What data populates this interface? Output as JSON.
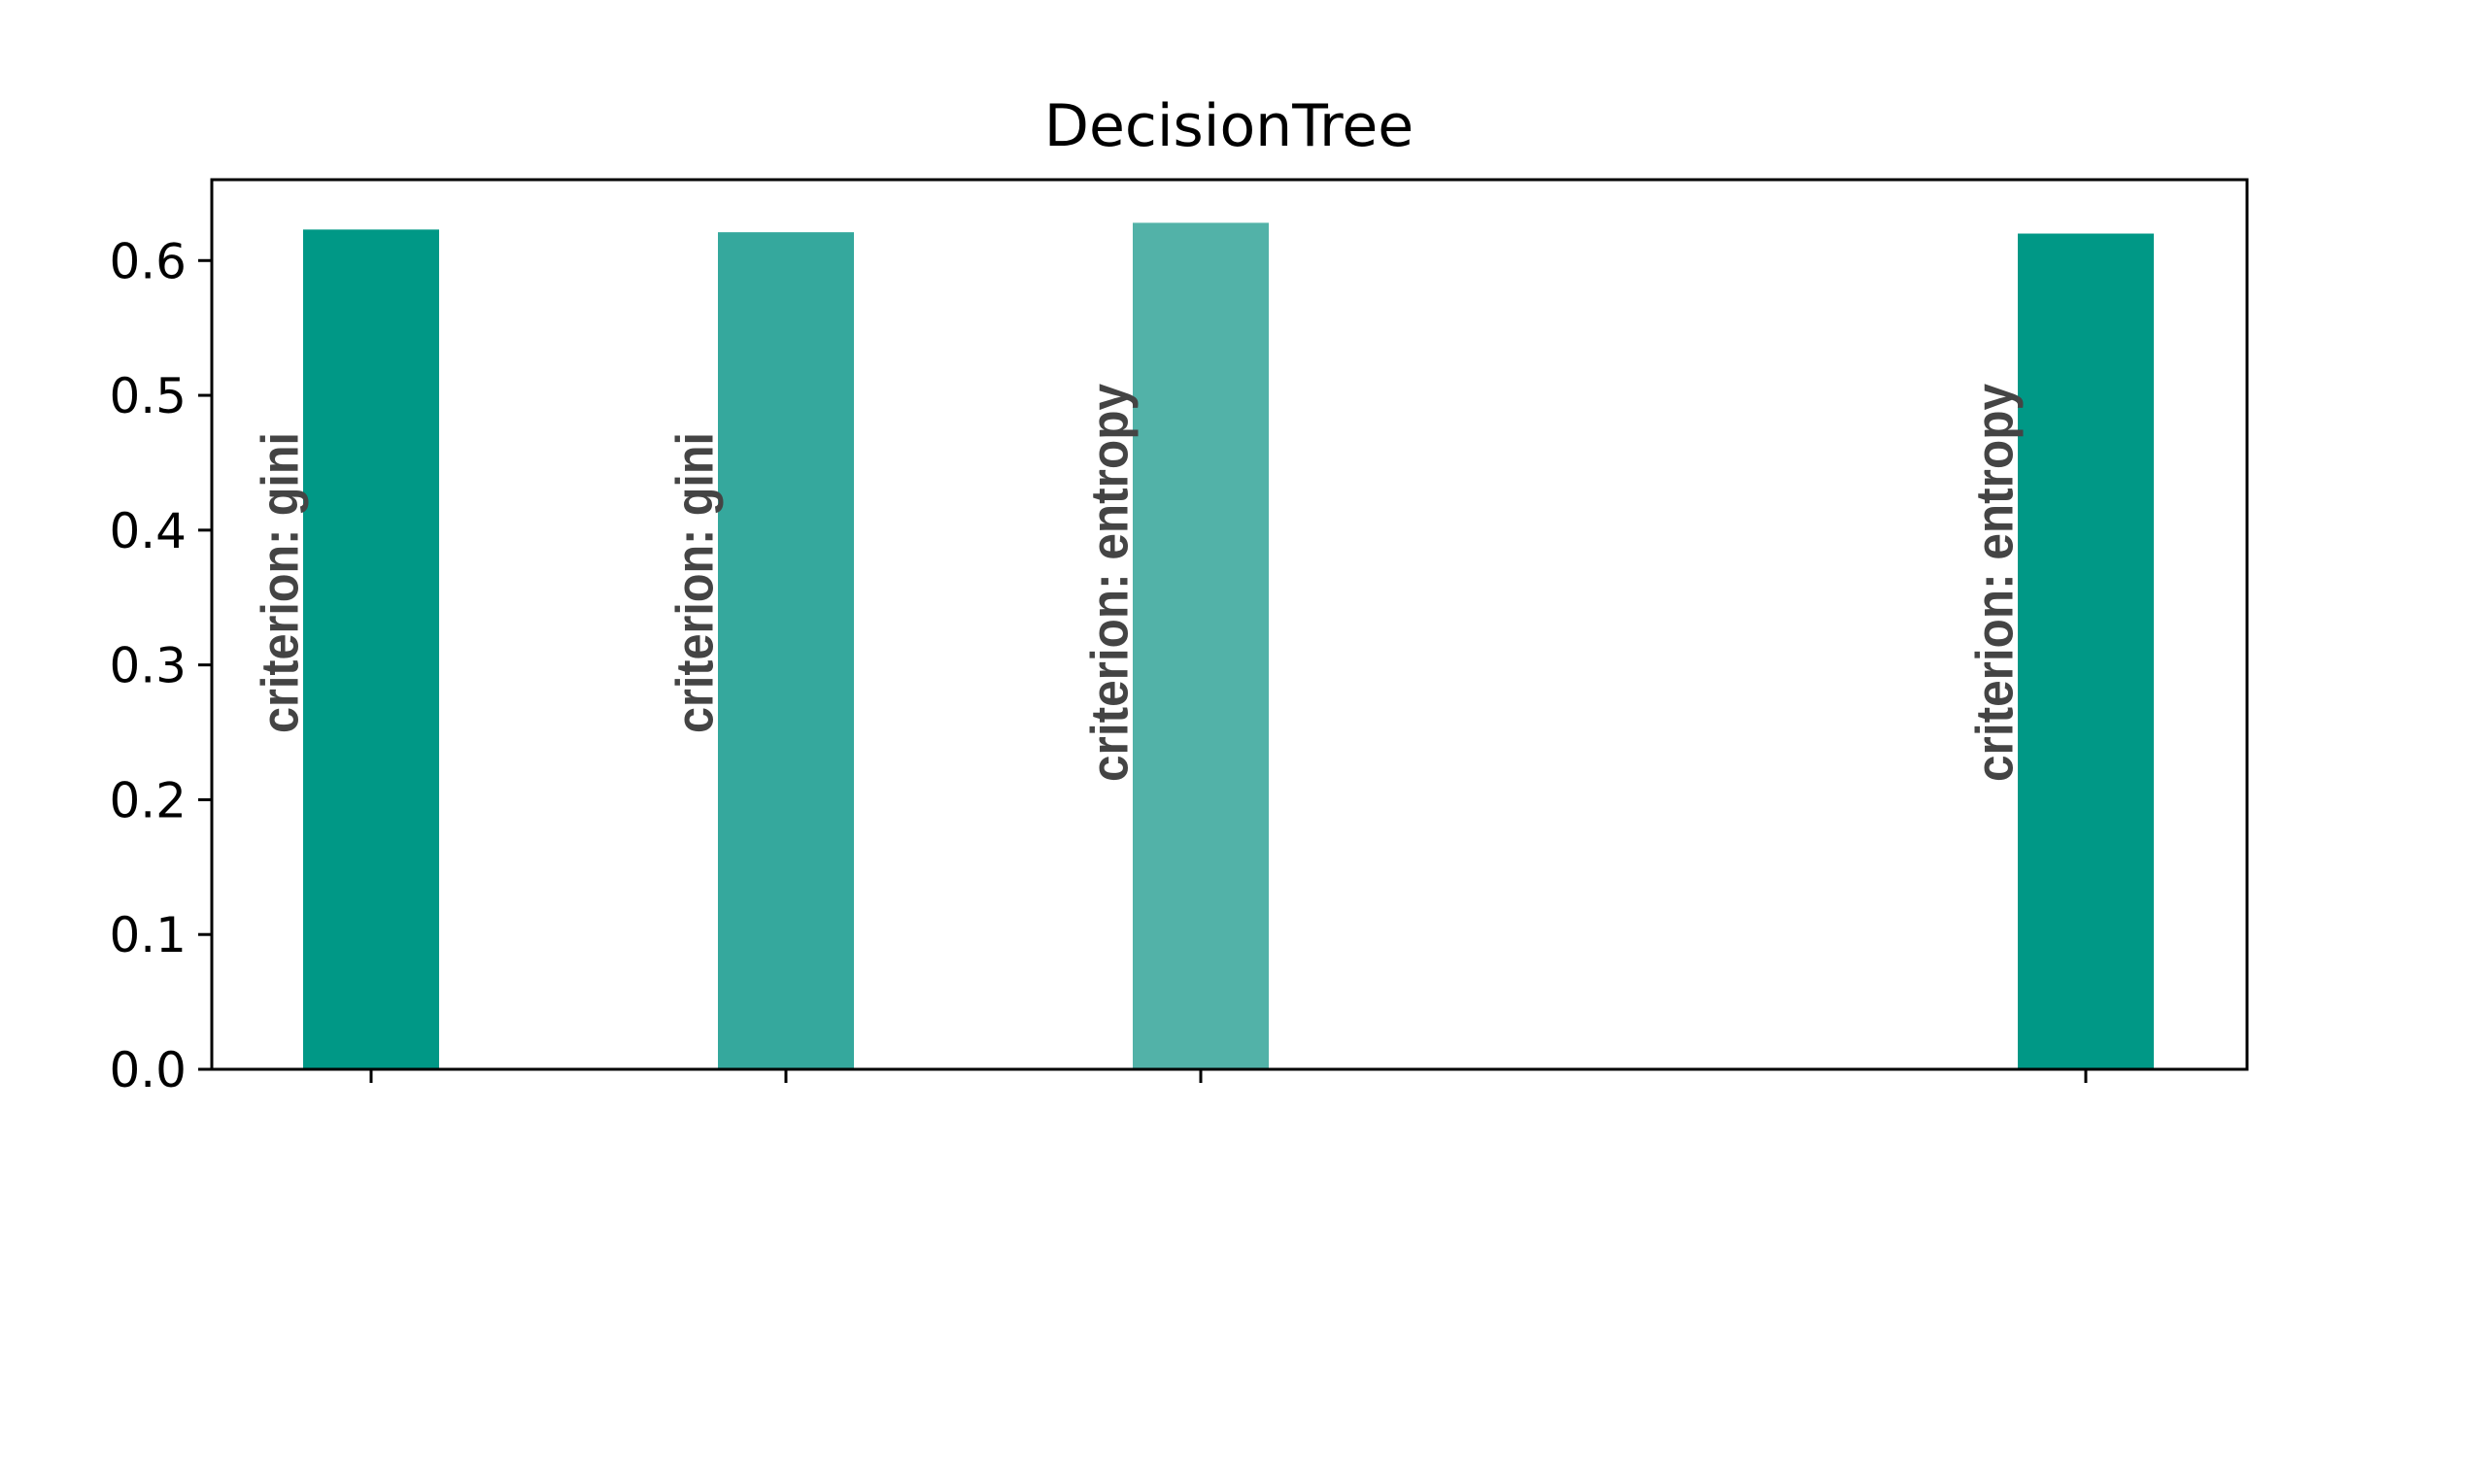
{
  "chart_data": {
    "type": "bar",
    "title": "DecisionTree",
    "xlabel": "",
    "ylabel": "",
    "ylim": [
      0,
      0.66
    ],
    "yticks": [
      0.0,
      0.1,
      0.2,
      0.3,
      0.4,
      0.5,
      0.6
    ],
    "ytick_labels": [
      "0.0",
      "0.1",
      "0.2",
      "0.3",
      "0.4",
      "0.5",
      "0.6"
    ],
    "grid": false,
    "legend": "none",
    "bars": [
      {
        "label": "criterion: gini",
        "value": 0.623,
        "color": "#009886"
      },
      {
        "label": "criterion: gini",
        "value": 0.621,
        "color": "#35a89d"
      },
      {
        "label": "criterion: entropy",
        "value": 0.628,
        "color": "#52b2a8"
      },
      {
        "label": "criterion: entropy",
        "value": 0.62,
        "color": "#009886"
      }
    ]
  }
}
